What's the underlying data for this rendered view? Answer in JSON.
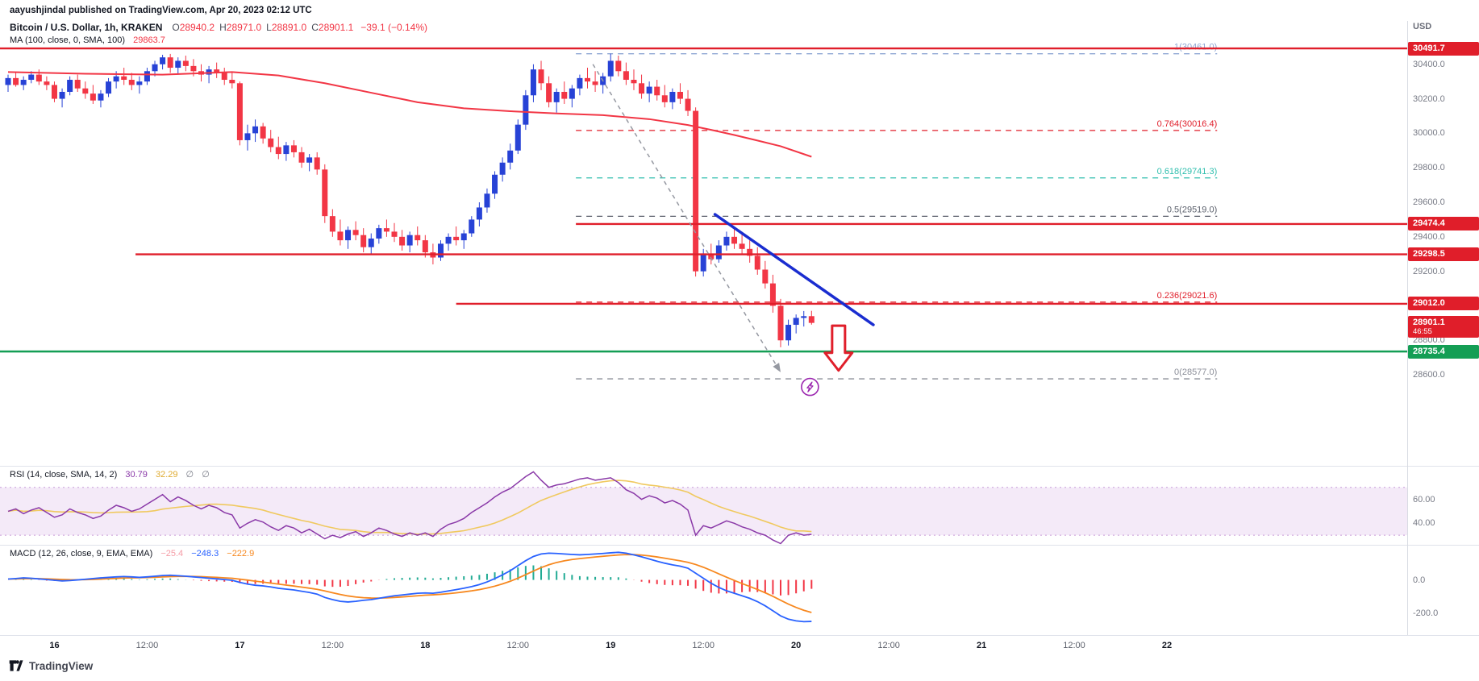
{
  "attribution": "aayushjindal published on TradingView.com, Apr 20, 2023 02:12 UTC",
  "header": {
    "title": "Bitcoin / U.S. Dollar, 1h, KRAKEN",
    "o_label": "O",
    "o": "28940.2",
    "h_label": "H",
    "h": "28971.0",
    "l_label": "L",
    "l": "28891.0",
    "c_label": "C",
    "c": "28901.1",
    "change": "−39.1 (−0.14%)",
    "ma_label": "MA (100, close, 0, SMA, 100)",
    "ma_value": "29863.7"
  },
  "rsi": {
    "label": "RSI (14, close, SMA, 14, 2)",
    "value": "30.79",
    "ma_value": "32.29",
    "empty1": "∅",
    "empty2": "∅"
  },
  "macd": {
    "label": "MACD (12, 26, close, 9, EMA, EMA)",
    "hist": "−25.4",
    "line": "−248.3",
    "signal": "−222.9"
  },
  "price_axis": {
    "currency": "USD"
  },
  "footer": {
    "brand": "TradingView"
  },
  "colors": {
    "up": "#2742d6",
    "down": "#f23645",
    "ma": "#f23645",
    "level_red": "#e01e2a",
    "level_green": "#149e55",
    "trend": "#1a2dd0",
    "arrow_gray": "#9598a1",
    "marker_red": "#e01e2a",
    "lightning": "#9c27b0",
    "rsi": "#8a39a8",
    "rsi_ma": "#f0c95f",
    "band": "#c79bd8",
    "band_fill": "rgba(170,90,200,0.13)",
    "macd": "#2962ff",
    "signal": "#f7881f",
    "hist_up": "#22ab94",
    "hist_down": "#f23645",
    "rsi_ma_legend": "#dfaa2f",
    "hist_legend": "#f59ba5",
    "text": "#131722",
    "muted": "#787b86"
  },
  "chart_data": {
    "type": "candlestick",
    "symbol": "Bitcoin / U.S. Dollar",
    "exchange": "KRAKEN",
    "interval": "1h",
    "price_range_visible": [
      28073,
      30651
    ],
    "candles": [
      [
        30280,
        30340,
        30240,
        30320
      ],
      [
        30320,
        30350,
        30270,
        30280
      ],
      [
        30280,
        30330,
        30250,
        30310
      ],
      [
        30310,
        30360,
        30290,
        30340
      ],
      [
        30340,
        30370,
        30280,
        30300
      ],
      [
        30300,
        30330,
        30250,
        30280
      ],
      [
        30280,
        30300,
        30180,
        30200
      ],
      [
        30200,
        30260,
        30150,
        30240
      ],
      [
        30240,
        30330,
        30220,
        30310
      ],
      [
        30310,
        30340,
        30240,
        30260
      ],
      [
        30260,
        30300,
        30200,
        30230
      ],
      [
        30230,
        30280,
        30170,
        30190
      ],
      [
        30190,
        30250,
        30150,
        30230
      ],
      [
        30230,
        30320,
        30210,
        30300
      ],
      [
        30300,
        30360,
        30260,
        30330
      ],
      [
        30330,
        30380,
        30280,
        30310
      ],
      [
        30310,
        30350,
        30250,
        30280
      ],
      [
        30280,
        30330,
        30230,
        30300
      ],
      [
        30300,
        30380,
        30280,
        30360
      ],
      [
        30360,
        30420,
        30330,
        30400
      ],
      [
        30400,
        30455,
        30370,
        30440
      ],
      [
        30440,
        30460,
        30350,
        30380
      ],
      [
        30380,
        30440,
        30340,
        30420
      ],
      [
        30420,
        30450,
        30360,
        30390
      ],
      [
        30390,
        30430,
        30330,
        30360
      ],
      [
        30360,
        30400,
        30300,
        30340
      ],
      [
        30340,
        30390,
        30290,
        30370
      ],
      [
        30370,
        30410,
        30320,
        30350
      ],
      [
        30350,
        30380,
        30280,
        30310
      ],
      [
        30310,
        30350,
        30260,
        30290
      ],
      [
        30290,
        30300,
        29930,
        29960
      ],
      [
        29960,
        30050,
        29900,
        30000
      ],
      [
        30000,
        30080,
        29950,
        30040
      ],
      [
        30040,
        30060,
        29940,
        29970
      ],
      [
        29970,
        30020,
        29890,
        29920
      ],
      [
        29920,
        29980,
        29850,
        29880
      ],
      [
        29880,
        29950,
        29840,
        29930
      ],
      [
        29930,
        29960,
        29860,
        29890
      ],
      [
        29890,
        29920,
        29800,
        29830
      ],
      [
        29830,
        29880,
        29780,
        29860
      ],
      [
        29860,
        29890,
        29760,
        29790
      ],
      [
        29790,
        29820,
        29480,
        29520
      ],
      [
        29520,
        29560,
        29400,
        29430
      ],
      [
        29430,
        29500,
        29350,
        29380
      ],
      [
        29380,
        29460,
        29330,
        29440
      ],
      [
        29440,
        29490,
        29380,
        29410
      ],
      [
        29410,
        29450,
        29310,
        29340
      ],
      [
        29340,
        29420,
        29300,
        29390
      ],
      [
        29390,
        29470,
        29360,
        29450
      ],
      [
        29450,
        29500,
        29400,
        29430
      ],
      [
        29430,
        29480,
        29370,
        29400
      ],
      [
        29400,
        29440,
        29320,
        29350
      ],
      [
        29350,
        29430,
        29310,
        29410
      ],
      [
        29410,
        29460,
        29350,
        29380
      ],
      [
        29380,
        29410,
        29280,
        29310
      ],
      [
        29310,
        29360,
        29240,
        29280
      ],
      [
        29280,
        29380,
        29260,
        29360
      ],
      [
        29360,
        29420,
        29320,
        29400
      ],
      [
        29400,
        29460,
        29350,
        29380
      ],
      [
        29380,
        29440,
        29330,
        29420
      ],
      [
        29420,
        29520,
        29400,
        29500
      ],
      [
        29500,
        29600,
        29460,
        29570
      ],
      [
        29570,
        29680,
        29540,
        29650
      ],
      [
        29650,
        29780,
        29620,
        29760
      ],
      [
        29760,
        29860,
        29720,
        29830
      ],
      [
        29830,
        29940,
        29790,
        29900
      ],
      [
        29900,
        30080,
        29880,
        30050
      ],
      [
        30050,
        30250,
        30020,
        30220
      ],
      [
        30220,
        30400,
        30180,
        30370
      ],
      [
        30370,
        30420,
        30250,
        30290
      ],
      [
        30290,
        30330,
        30150,
        30180
      ],
      [
        30180,
        30260,
        30120,
        30240
      ],
      [
        30240,
        30300,
        30170,
        30200
      ],
      [
        30200,
        30280,
        30150,
        30260
      ],
      [
        30260,
        30340,
        30220,
        30320
      ],
      [
        30320,
        30380,
        30260,
        30300
      ],
      [
        30300,
        30360,
        30240,
        30280
      ],
      [
        30280,
        30350,
        30230,
        30330
      ],
      [
        30330,
        30461,
        30300,
        30420
      ],
      [
        30420,
        30450,
        30330,
        30360
      ],
      [
        30360,
        30410,
        30280,
        30310
      ],
      [
        30310,
        30370,
        30250,
        30290
      ],
      [
        30290,
        30340,
        30200,
        30230
      ],
      [
        30230,
        30300,
        30180,
        30270
      ],
      [
        30270,
        30310,
        30190,
        30220
      ],
      [
        30220,
        30280,
        30150,
        30180
      ],
      [
        30180,
        30260,
        30140,
        30240
      ],
      [
        30240,
        30290,
        30170,
        30200
      ],
      [
        30200,
        30250,
        30100,
        30130
      ],
      [
        30130,
        30150,
        29170,
        29200
      ],
      [
        29200,
        29330,
        29170,
        29300
      ],
      [
        29300,
        29360,
        29240,
        29270
      ],
      [
        29270,
        29380,
        29250,
        29350
      ],
      [
        29350,
        29430,
        29320,
        29400
      ],
      [
        29400,
        29450,
        29330,
        29360
      ],
      [
        29360,
        29420,
        29300,
        29330
      ],
      [
        29330,
        29380,
        29250,
        29290
      ],
      [
        29290,
        29340,
        29180,
        29210
      ],
      [
        29210,
        29260,
        29100,
        29130
      ],
      [
        29130,
        29180,
        28960,
        29000
      ],
      [
        29000,
        29040,
        28760,
        28800
      ],
      [
        28800,
        28920,
        28770,
        28890
      ],
      [
        28890,
        28950,
        28840,
        28930
      ],
      [
        28930,
        28970,
        28880,
        28940
      ],
      [
        28940.2,
        28971,
        28891,
        28901.1
      ]
    ],
    "ma100": [
      [
        0,
        30355
      ],
      [
        10,
        30345
      ],
      [
        20,
        30340
      ],
      [
        29,
        30355
      ],
      [
        35,
        30335
      ],
      [
        41,
        30290
      ],
      [
        47,
        30235
      ],
      [
        53,
        30180
      ],
      [
        59,
        30145
      ],
      [
        65,
        30128
      ],
      [
        71,
        30115
      ],
      [
        77,
        30105
      ],
      [
        83,
        30082
      ],
      [
        88,
        30048
      ],
      [
        91,
        30020
      ],
      [
        94,
        29990
      ],
      [
        97,
        29958
      ],
      [
        100,
        29925
      ],
      [
        104,
        29864
      ]
    ],
    "levels": [
      {
        "price": 30491.7,
        "full": true,
        "color": "red",
        "badge": "30491.7"
      },
      {
        "price": 29474.4,
        "from_hour": 73.5,
        "color": "red",
        "badge": "29474.4"
      },
      {
        "price": 29298.5,
        "from_hour": 16.5,
        "color": "red",
        "badge": "29298.5"
      },
      {
        "price": 29012.0,
        "from_hour": 58,
        "color": "red",
        "badge": "29012.0"
      },
      {
        "price": 28735.4,
        "full": true,
        "color": "green",
        "badge": "28735.4"
      }
    ],
    "current": {
      "price": 28901.1,
      "label": "28901.1",
      "countdown": "46:55"
    },
    "fib_from_hour": 73.5,
    "fib_to_hour": 156.5,
    "fib_levels": [
      {
        "label": "1(30461.0)",
        "price": 30461.0,
        "color": "#8fa7d4"
      },
      {
        "label": "0.764(30016.4)",
        "price": 30016.4,
        "color": "#e01e2a"
      },
      {
        "label": "0.618(29741.3)",
        "price": 29741.3,
        "color": "#2fbfae"
      },
      {
        "label": "0.5(29519.0)",
        "price": 29519.0,
        "color": "#5a5f6b"
      },
      {
        "label": "0.236(29021.6)",
        "price": 29021.6,
        "color": "#e01e2a"
      },
      {
        "label": "0(28577.0)",
        "price": 28577.0,
        "color": "#8c8f99"
      }
    ],
    "trendline": {
      "from": [
        91.5,
        29530
      ],
      "to": [
        112,
        28890
      ]
    },
    "dashed_arrow": {
      "from": [
        75.7,
        30400
      ],
      "to": [
        100,
        28615
      ]
    },
    "down_arrow": {
      "hour": 107.5,
      "top_price": 28885,
      "bottom_price": 28625
    },
    "lightning": {
      "hour": 103.8,
      "price": 28530
    },
    "price_ticks": [
      {
        "label": "30400.0",
        "price": 30400
      },
      {
        "label": "30200.0",
        "price": 30200
      },
      {
        "label": "30000.0",
        "price": 30000
      },
      {
        "label": "29800.0",
        "price": 29800
      },
      {
        "label": "29600.0",
        "price": 29600
      },
      {
        "label": "29400.0",
        "price": 29400
      },
      {
        "label": "29200.0",
        "price": 29200
      },
      {
        "label": "28800.0",
        "price": 28800
      },
      {
        "label": "28600.0",
        "price": 28600
      }
    ],
    "rsi_values": [
      50,
      52,
      48,
      51,
      53,
      49,
      45,
      47,
      52,
      49,
      47,
      44,
      46,
      51,
      55,
      53,
      50,
      52,
      56,
      60,
      64,
      58,
      62,
      59,
      55,
      52,
      55,
      53,
      49,
      47,
      36,
      40,
      43,
      41,
      37,
      34,
      38,
      36,
      32,
      35,
      31,
      27,
      30,
      28,
      31,
      33,
      29,
      32,
      36,
      34,
      31,
      29,
      32,
      30,
      32,
      29,
      35,
      39,
      41,
      44,
      49,
      53,
      57,
      62,
      66,
      69,
      74,
      79,
      83,
      76,
      70,
      72,
      73,
      75,
      77,
      78,
      76,
      77,
      78,
      74,
      68,
      65,
      60,
      63,
      61,
      57,
      59,
      56,
      51,
      30,
      38,
      36,
      39,
      42,
      40,
      37,
      35,
      32,
      30,
      26,
      23,
      30,
      32,
      30,
      30.79
    ],
    "rsi_band": [
      70,
      30
    ],
    "rsi_ticks": [
      {
        "label": "60.00",
        "value": 60
      },
      {
        "label": "40.00",
        "value": 40
      }
    ],
    "macd_values": [
      5,
      8,
      12,
      10,
      6,
      2,
      -2,
      -6,
      -4,
      0,
      4,
      8,
      12,
      15,
      18,
      20,
      18,
      15,
      18,
      22,
      26,
      28,
      25,
      22,
      18,
      14,
      10,
      6,
      2,
      -2,
      -15,
      -25,
      -32,
      -36,
      -42,
      -50,
      -55,
      -60,
      -68,
      -75,
      -85,
      -105,
      -118,
      -128,
      -132,
      -128,
      -122,
      -118,
      -110,
      -102,
      -95,
      -90,
      -85,
      -80,
      -78,
      -80,
      -74,
      -66,
      -58,
      -50,
      -40,
      -28,
      -12,
      8,
      30,
      55,
      85,
      115,
      140,
      155,
      160,
      158,
      155,
      152,
      150,
      152,
      155,
      158,
      162,
      165,
      160,
      150,
      138,
      125,
      112,
      100,
      90,
      82,
      70,
      40,
      10,
      -20,
      -45,
      -65,
      -80,
      -95,
      -110,
      -130,
      -155,
      -185,
      -215,
      -235,
      -245,
      -250,
      -248.3
    ],
    "macd_ticks": [
      {
        "label": "0.0",
        "value": 0
      },
      {
        "label": "-200.0",
        "value": -200
      }
    ],
    "time_labels": [
      {
        "label": "16",
        "hour": 6,
        "major": true
      },
      {
        "label": "12:00",
        "hour": 18,
        "major": false
      },
      {
        "label": "17",
        "hour": 30,
        "major": true
      },
      {
        "label": "12:00",
        "hour": 42,
        "major": false
      },
      {
        "label": "18",
        "hour": 54,
        "major": true
      },
      {
        "label": "12:00",
        "hour": 66,
        "major": false
      },
      {
        "label": "19",
        "hour": 78,
        "major": true
      },
      {
        "label": "12:00",
        "hour": 90,
        "major": false
      },
      {
        "label": "20",
        "hour": 102,
        "major": true
      },
      {
        "label": "12:00",
        "hour": 114,
        "major": false
      },
      {
        "label": "21",
        "hour": 126,
        "major": true
      },
      {
        "label": "12:00",
        "hour": 138,
        "major": false
      },
      {
        "label": "22",
        "hour": 150,
        "major": true
      }
    ]
  }
}
